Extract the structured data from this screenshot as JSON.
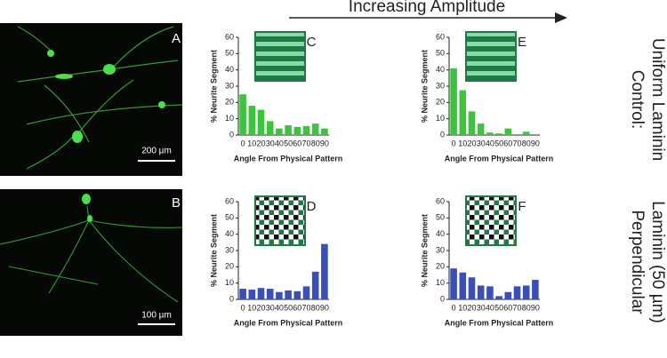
{
  "figure": {
    "header": "Increasing Amplitude",
    "row_labels": [
      {
        "line1": "Control:",
        "line2": "Uniform Laminin"
      },
      {
        "line1": "Perpendicular",
        "line2": "Laminin (50 µm)"
      }
    ],
    "micrographs": [
      {
        "label": "A",
        "scale_bar": "200 µm"
      },
      {
        "label": "B",
        "scale_bar": "100 µm"
      }
    ]
  },
  "chart_data": [
    {
      "type": "bar",
      "panel": "C",
      "pattern": "stripes",
      "xlabel": "Angle From Physical Pattern",
      "ylabel": "% Neurite Segment",
      "categories": [
        "0",
        "10",
        "20",
        "30",
        "40",
        "50",
        "60",
        "70",
        "80",
        "90"
      ],
      "values": [
        25,
        18,
        15.5,
        8.5,
        4,
        6,
        5,
        5.5,
        7,
        4
      ],
      "color": "#3cc43c",
      "ylim": [
        0,
        60
      ],
      "yticks": [
        0,
        10,
        20,
        30,
        40,
        50,
        60
      ]
    },
    {
      "type": "bar",
      "panel": "E",
      "pattern": "stripes",
      "xlabel": "Angle From Physical Pattern",
      "ylabel": "% Neurite Segment",
      "categories": [
        "0",
        "10",
        "20",
        "30",
        "40",
        "50",
        "60",
        "70",
        "80",
        "90"
      ],
      "values": [
        41,
        27.5,
        14.5,
        7,
        1.5,
        1,
        4,
        0.5,
        2,
        0.5
      ],
      "color": "#3cc43c",
      "ylim": [
        0,
        60
      ],
      "yticks": [
        0,
        10,
        20,
        30,
        40,
        50,
        60
      ]
    },
    {
      "type": "bar",
      "panel": "D",
      "pattern": "checks",
      "xlabel": "Angle From Physical Pattern",
      "ylabel": "% Neurite Segment",
      "categories": [
        "0",
        "10",
        "20",
        "30",
        "40",
        "50",
        "60",
        "70",
        "80",
        "90"
      ],
      "values": [
        6.5,
        6,
        7,
        6.5,
        4.5,
        5.5,
        5,
        8,
        17,
        34
      ],
      "color": "#3a4fb8",
      "ylim": [
        0,
        60
      ],
      "yticks": [
        0,
        10,
        20,
        30,
        40,
        50,
        60
      ]
    },
    {
      "type": "bar",
      "panel": "F",
      "pattern": "checks",
      "xlabel": "Angle From Physical Pattern",
      "ylabel": "% Neurite Segment",
      "categories": [
        "0",
        "10",
        "20",
        "30",
        "40",
        "50",
        "60",
        "70",
        "80",
        "90"
      ],
      "values": [
        19,
        16.5,
        13.5,
        8.5,
        8,
        2,
        4.5,
        8,
        8.5,
        12
      ],
      "color": "#3a4fb8",
      "ylim": [
        0,
        60
      ],
      "yticks": [
        0,
        10,
        20,
        30,
        40,
        50,
        60
      ]
    }
  ]
}
